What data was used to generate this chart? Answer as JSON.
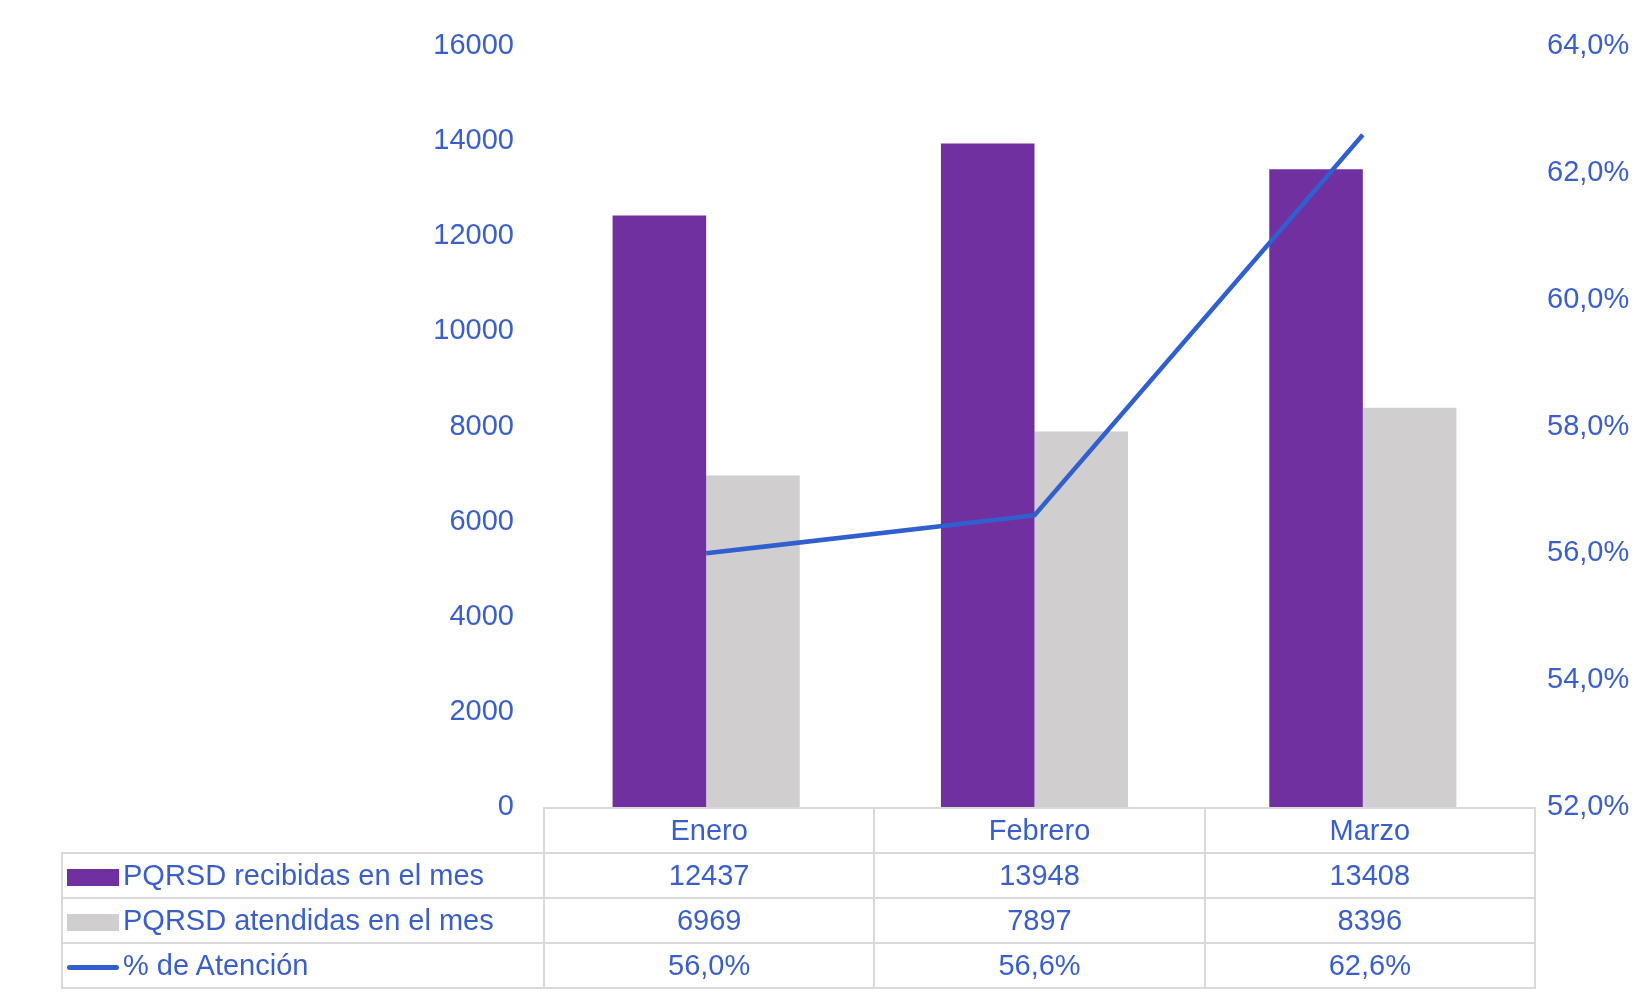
{
  "chart_data": {
    "type": "bar",
    "categories": [
      "Enero",
      "Febrero",
      "Marzo"
    ],
    "series": [
      {
        "name": "PQRSD recibidas en el mes",
        "color": "#7030a0",
        "values": [
          12437,
          13948,
          13408
        ],
        "value_labels": [
          "12437",
          "13948",
          "13408"
        ]
      },
      {
        "name": "PQRSD atendidas en el mes",
        "color": "#d0cece",
        "values": [
          6969,
          7897,
          8396
        ],
        "value_labels": [
          "6969",
          "7897",
          "8396"
        ]
      },
      {
        "type": "line",
        "name": "% de Atención",
        "color": "#3060d0",
        "axis": "y2",
        "values": [
          56.0,
          56.6,
          62.6
        ],
        "value_labels": [
          "56,0%",
          "56,6%",
          "62,6%"
        ]
      }
    ],
    "ylim": [
      0,
      16000
    ],
    "yticks": [
      0,
      2000,
      4000,
      6000,
      8000,
      10000,
      12000,
      14000,
      16000
    ],
    "y2lim": [
      52,
      64
    ],
    "y2ticks": [
      {
        "value": 52,
        "label": "52,0%"
      },
      {
        "value": 54,
        "label": "54,0%"
      },
      {
        "value": 56,
        "label": "56,0%"
      },
      {
        "value": 58,
        "label": "58,0%"
      },
      {
        "value": 60,
        "label": "60,0%"
      },
      {
        "value": 62,
        "label": "62,0%"
      },
      {
        "value": 64,
        "label": "64,0%"
      }
    ],
    "legend": "bottom",
    "marker": "none"
  }
}
